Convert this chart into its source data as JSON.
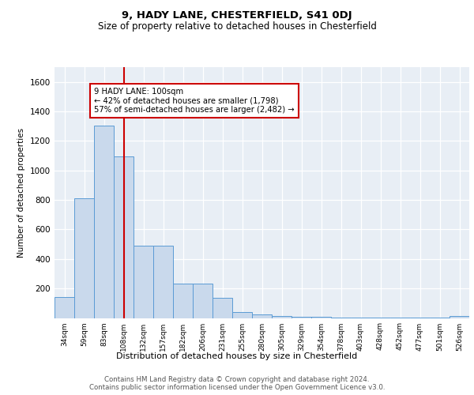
{
  "title1": "9, HADY LANE, CHESTERFIELD, S41 0DJ",
  "title2": "Size of property relative to detached houses in Chesterfield",
  "xlabel": "Distribution of detached houses by size in Chesterfield",
  "ylabel": "Number of detached properties",
  "bar_color": "#c9d9ec",
  "bar_edge_color": "#5b9bd5",
  "vline_color": "#cc0000",
  "vline_x": 3.0,
  "annotation_text": "9 HADY LANE: 100sqm\n← 42% of detached houses are smaller (1,798)\n57% of semi-detached houses are larger (2,482) →",
  "annotation_box_color": "#ffffff",
  "annotation_box_edge": "#cc0000",
  "categories": [
    "34sqm",
    "59sqm",
    "83sqm",
    "108sqm",
    "132sqm",
    "157sqm",
    "182sqm",
    "206sqm",
    "231sqm",
    "255sqm",
    "280sqm",
    "305sqm",
    "329sqm",
    "354sqm",
    "378sqm",
    "403sqm",
    "428sqm",
    "452sqm",
    "477sqm",
    "501sqm",
    "526sqm"
  ],
  "values": [
    140,
    810,
    1305,
    1095,
    490,
    490,
    235,
    235,
    135,
    40,
    25,
    15,
    10,
    10,
    5,
    5,
    3,
    3,
    2,
    2,
    15
  ],
  "ylim": [
    0,
    1700
  ],
  "yticks": [
    0,
    200,
    400,
    600,
    800,
    1000,
    1200,
    1400,
    1600
  ],
  "footer": "Contains HM Land Registry data © Crown copyright and database right 2024.\nContains public sector information licensed under the Open Government Licence v3.0.",
  "background_color": "#e8eef5",
  "fig_bg": "#ffffff"
}
